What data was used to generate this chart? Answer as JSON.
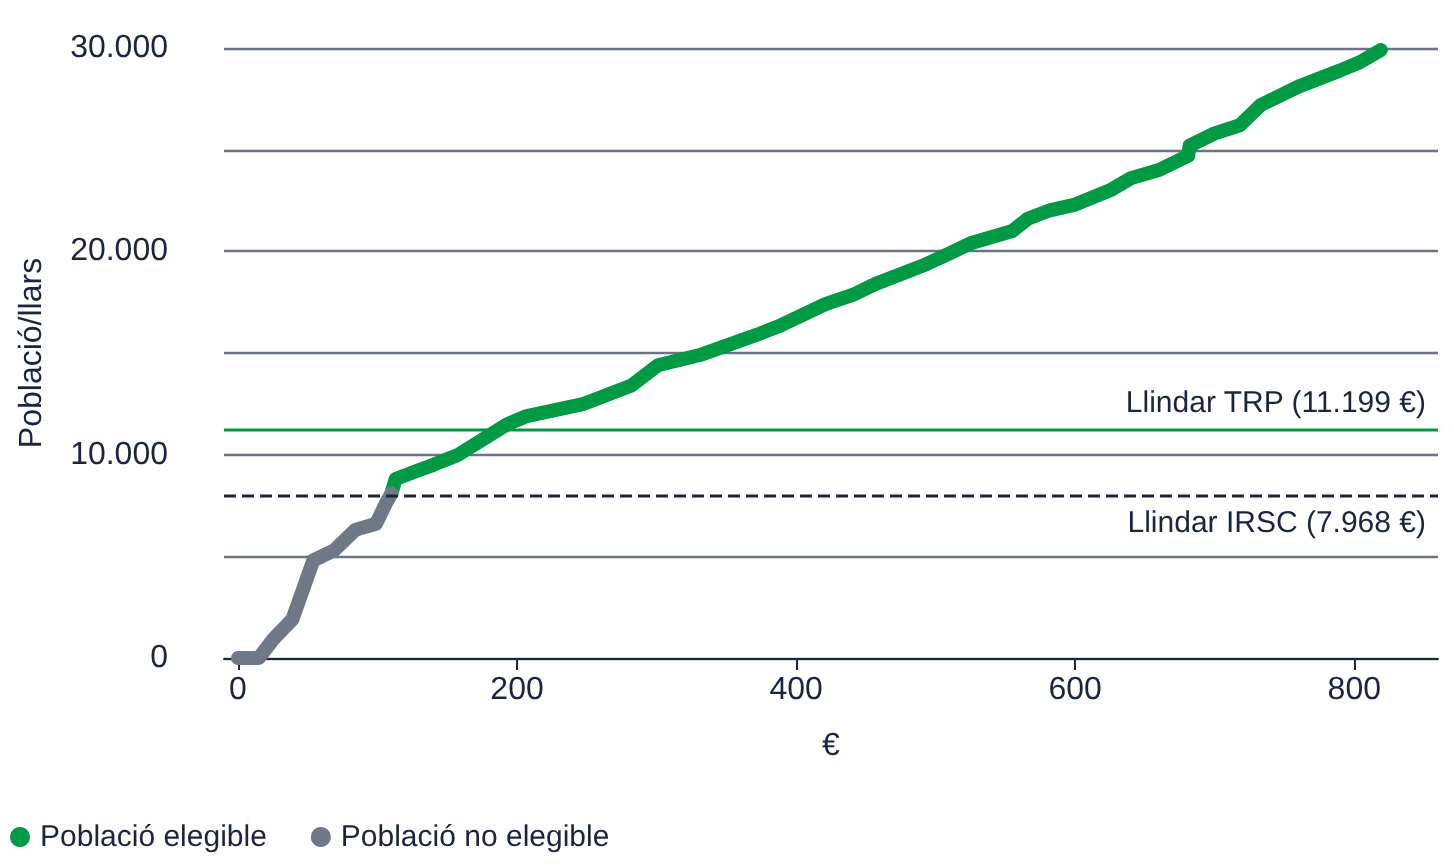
{
  "chart_data": {
    "type": "line",
    "xlabel": "€",
    "ylabel": "Població/llars",
    "series": [
      {
        "name": "Població elegible",
        "color": "#009a44",
        "x": [
          110,
          113,
          128,
          140,
          158,
          193,
          207,
          248,
          282,
          301,
          331,
          372,
          387,
          421,
          442,
          457,
          491,
          510,
          525,
          555,
          566,
          581,
          600,
          625,
          640,
          660,
          681,
          682,
          700,
          718,
          733,
          760,
          790,
          804,
          819
        ],
        "values": [
          8100,
          8800,
          9200,
          9500,
          10000,
          11500,
          11900,
          12500,
          13400,
          14400,
          14900,
          15900,
          16300,
          17400,
          17900,
          18400,
          19300,
          19900,
          20400,
          21000,
          21600,
          22000,
          22300,
          23000,
          23600,
          24000,
          24700,
          25200,
          25800,
          26200,
          27200,
          28100,
          28900,
          29300,
          29900
        ]
      },
      {
        "name": "Població no elegible",
        "color": "#6e7887",
        "x": [
          0,
          15,
          25,
          39,
          54,
          69,
          84,
          99,
          106,
          110
        ],
        "values": [
          0,
          0,
          900,
          1900,
          4800,
          5300,
          6300,
          6600,
          7600,
          8100
        ]
      }
    ],
    "xlim": [
      -10,
      860
    ],
    "xticks": [
      0,
      200,
      400,
      600,
      800
    ],
    "ylim": [
      0,
      30000
    ],
    "yticks": [
      0,
      {
        "value": 5000,
        "label": null
      },
      {
        "value": 10000,
        "label": "10.000"
      },
      {
        "value": 15000,
        "label": null
      },
      {
        "value": 20000,
        "label": "20.000"
      },
      {
        "value": 25000,
        "label": null
      },
      {
        "value": 30000,
        "label": "30.000"
      }
    ],
    "grid": "y",
    "legend": "bottom left",
    "marker": "none",
    "line_style": "solid",
    "ref_lines": [
      {
        "axis": "y",
        "value": 11199,
        "label": "Llindar TRP (11.199 €)",
        "color": "#009a44",
        "line_style": "solid"
      },
      {
        "axis": "y",
        "value": 7968,
        "label": "Llindar IRSC (7.968 €)",
        "color": "#1b2440",
        "line_style": "dashed"
      }
    ]
  }
}
